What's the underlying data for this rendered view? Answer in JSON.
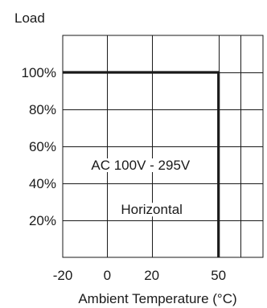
{
  "chart_data": {
    "type": "line",
    "ylabel": "Load",
    "xlabel": "Ambient Temperature (°C)",
    "x_ticks": [
      -20,
      0,
      20,
      50
    ],
    "x_tick_labels": [
      "-20",
      "0",
      "20",
      "50"
    ],
    "xlim": [
      -20,
      70
    ],
    "y_ticks": [
      20,
      40,
      60,
      80,
      100
    ],
    "y_tick_labels": [
      "20%",
      "40%",
      "60%",
      "80%",
      "100%"
    ],
    "ylim": [
      0,
      120
    ],
    "grid": true,
    "series": [
      {
        "x": [
          -20,
          50,
          50
        ],
        "y": [
          100,
          100,
          0
        ]
      }
    ],
    "annotations": [
      {
        "text": "AC 100V - 295V",
        "x": 15,
        "y": 50
      },
      {
        "text": "Horizontal",
        "x": 20,
        "y": 26
      }
    ]
  }
}
